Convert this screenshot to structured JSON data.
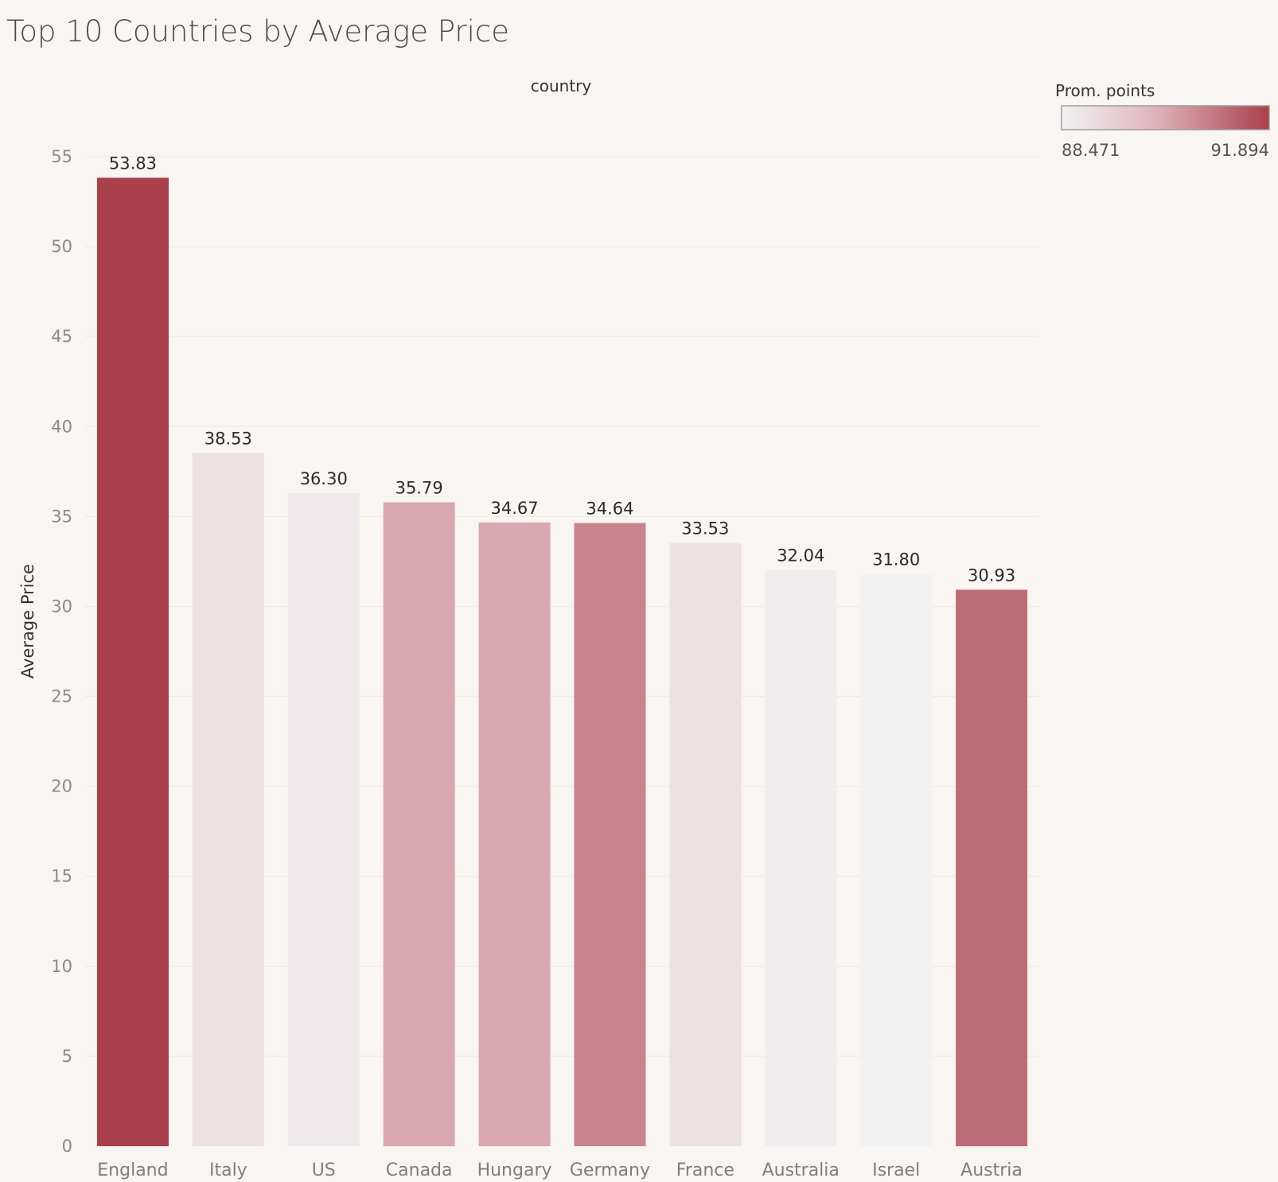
{
  "title": "Top 10 Countries by Average Price",
  "colors": {
    "background": "#f9f5f2",
    "gradient_low": "#f2f2f3",
    "gradient_mid": "#dfb4bc",
    "gradient_high": "#a9404b"
  },
  "legend": {
    "title": "Prom. points",
    "min_label": "88.471",
    "max_label": "91.894",
    "placement": "top-right"
  },
  "chart_data": {
    "type": "bar",
    "title": "Top 10 Countries by Average Price",
    "column_header": "country",
    "xlabel": "",
    "ylabel": "Average Price",
    "ylim": [
      0,
      55
    ],
    "yticks": [
      0,
      5,
      10,
      15,
      20,
      25,
      30,
      35,
      40,
      45,
      50,
      55
    ],
    "grid": true,
    "color_measure": "Prom. points",
    "color_range": [
      88.471,
      91.894
    ],
    "categories": [
      "England",
      "Italy",
      "US",
      "Canada",
      "Hungary",
      "Germany",
      "France",
      "Australia",
      "Israel",
      "Austria"
    ],
    "values": [
      53.83,
      38.53,
      36.3,
      35.79,
      34.67,
      34.64,
      33.53,
      32.04,
      31.8,
      30.93
    ],
    "value_labels": [
      "53.83",
      "38.53",
      "36.30",
      "35.79",
      "34.67",
      "34.64",
      "33.53",
      "32.04",
      "31.80",
      "30.93"
    ],
    "color_values": [
      91.894,
      88.9,
      88.7,
      90.2,
      90.2,
      90.8,
      88.9,
      88.6,
      88.5,
      91.2
    ]
  }
}
